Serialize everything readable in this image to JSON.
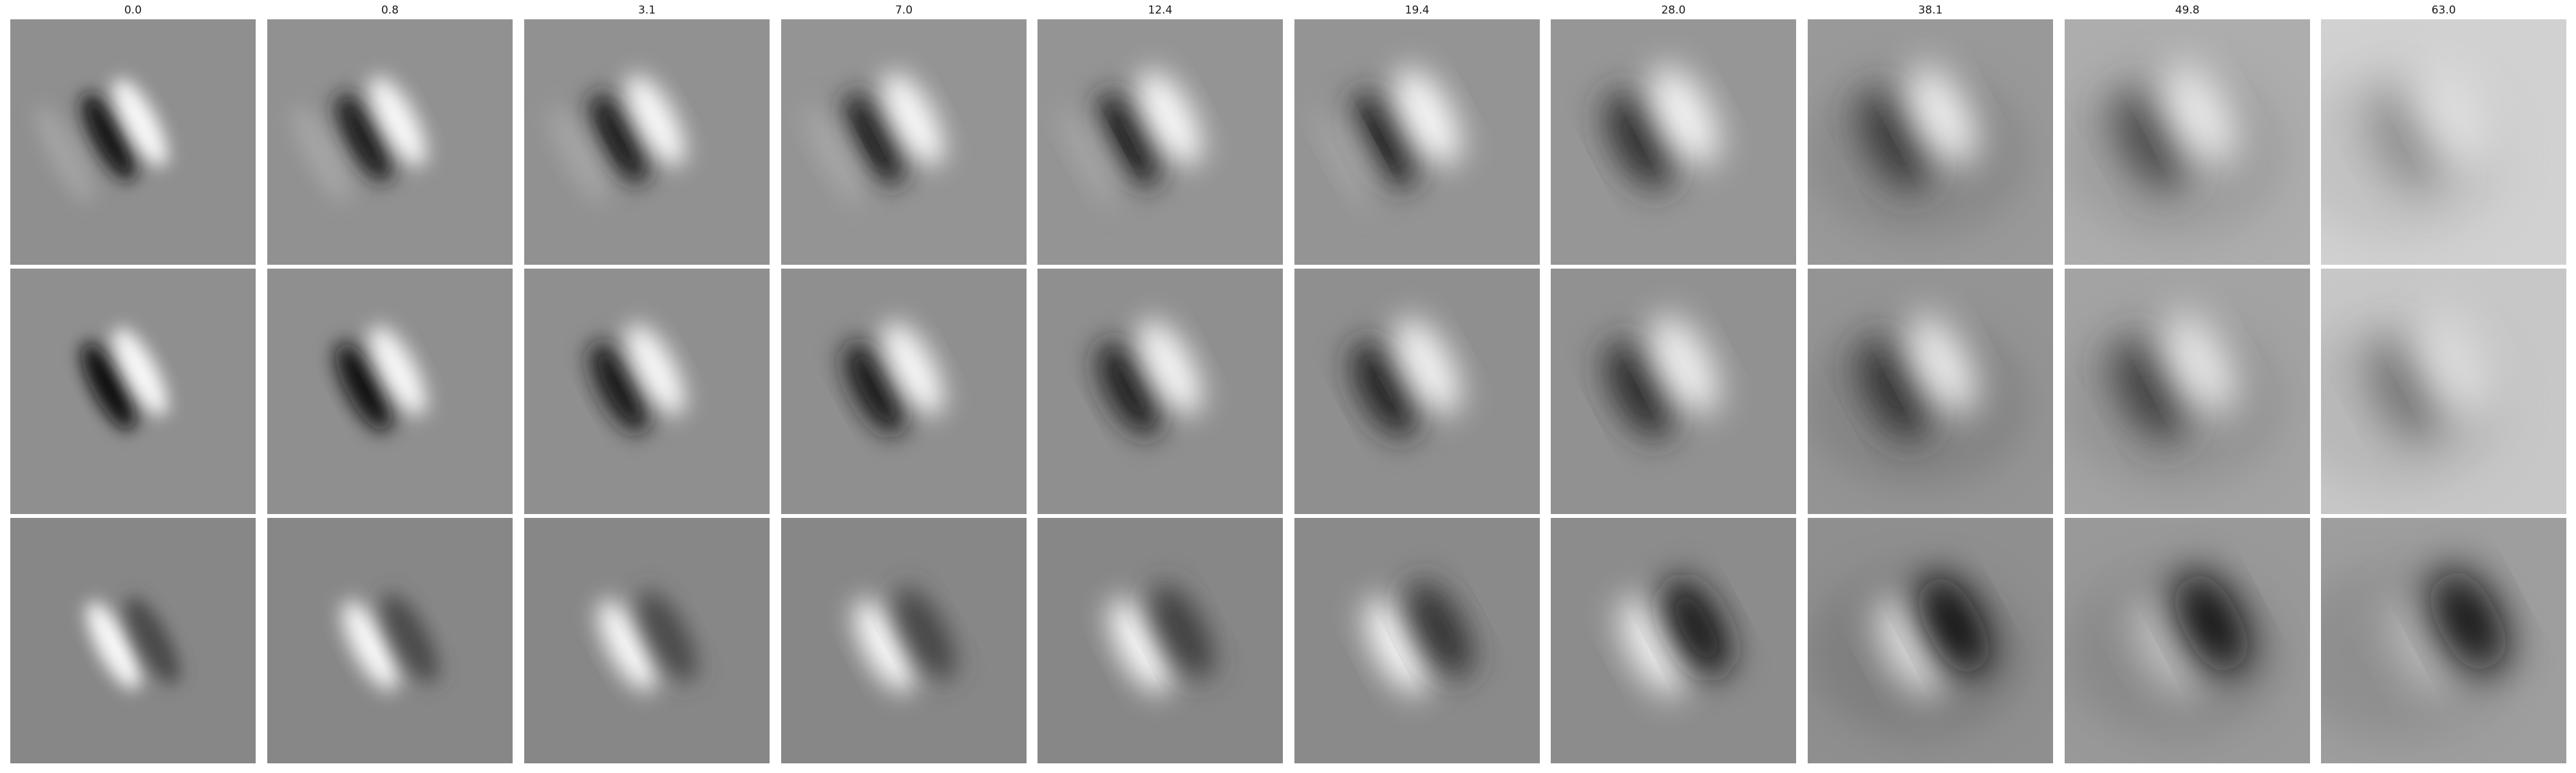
{
  "figure": {
    "column_titles": [
      "0.0",
      "0.8",
      "3.1",
      "7.0",
      "12.4",
      "19.4",
      "28.0",
      "38.1",
      "49.8",
      "63.0"
    ],
    "rows": [
      {
        "bg_levels": [
          0.56,
          0.57,
          0.57,
          0.58,
          0.58,
          0.58,
          0.59,
          0.6,
          0.68,
          0.82
        ],
        "lobes": [
          {
            "type": "dark",
            "strength": [
              0.85,
              0.82,
              0.8,
              0.78,
              0.76,
              0.74,
              0.7,
              0.62,
              0.55,
              0.3
            ]
          },
          {
            "type": "bright",
            "strength": [
              0.95,
              0.95,
              0.95,
              0.95,
              0.95,
              0.95,
              0.92,
              0.85,
              0.75,
              0.3
            ]
          }
        ]
      },
      {
        "bg_levels": [
          0.56,
          0.56,
          0.56,
          0.56,
          0.56,
          0.56,
          0.57,
          0.58,
          0.64,
          0.78
        ],
        "lobes": [
          {
            "type": "dark",
            "strength": [
              0.9,
              0.88,
              0.86,
              0.84,
              0.8,
              0.76,
              0.7,
              0.66,
              0.6,
              0.4
            ]
          },
          {
            "type": "bright",
            "strength": [
              0.95,
              0.95,
              0.95,
              0.95,
              0.93,
              0.9,
              0.88,
              0.82,
              0.75,
              0.4
            ]
          }
        ]
      },
      {
        "bg_levels": [
          0.53,
          0.53,
          0.53,
          0.53,
          0.53,
          0.54,
          0.55,
          0.56,
          0.6,
          0.62
        ],
        "lobes": [
          {
            "type": "bright",
            "strength": [
              0.95,
              0.95,
              0.95,
              0.95,
              0.95,
              0.93,
              0.88,
              0.7,
              0.35,
              0.25
            ]
          },
          {
            "type": "dark",
            "strength": [
              0.45,
              0.45,
              0.45,
              0.5,
              0.55,
              0.65,
              0.85,
              0.9,
              0.9,
              0.9
            ]
          }
        ]
      }
    ]
  }
}
